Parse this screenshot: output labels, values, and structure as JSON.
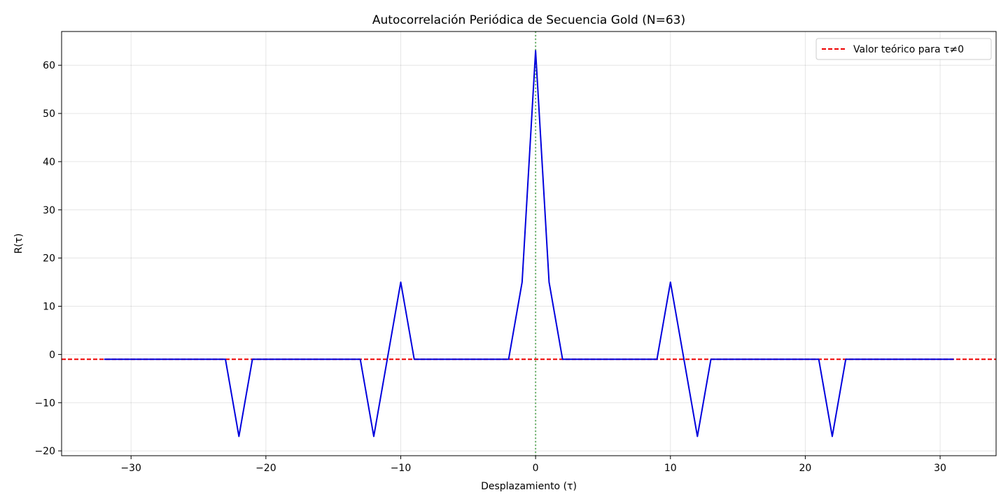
{
  "chart_data": {
    "type": "line",
    "title": "Autocorrelación Periódica de Secuencia Gold (N=63)",
    "xlabel": "Desplazamiento (τ)",
    "ylabel": "R(τ)",
    "xlim": [
      -35.15,
      34.15
    ],
    "ylim": [
      -21,
      67
    ],
    "xticks": [
      -30,
      -20,
      -10,
      0,
      10,
      20,
      30
    ],
    "xtick_labels": [
      "−30",
      "−20",
      "−10",
      "0",
      "10",
      "20",
      "30"
    ],
    "yticks": [
      -20,
      -10,
      0,
      10,
      20,
      30,
      40,
      50,
      60
    ],
    "ytick_labels": [
      "−20",
      "−10",
      "0",
      "10",
      "20",
      "30",
      "40",
      "50",
      "60"
    ],
    "grid": true,
    "legend_position": "top-right",
    "x": [
      -32,
      -31,
      -30,
      -29,
      -28,
      -27,
      -26,
      -25,
      -24,
      -23,
      -22,
      -21,
      -20,
      -19,
      -18,
      -17,
      -16,
      -15,
      -14,
      -13,
      -12,
      -11,
      -10,
      -9,
      -8,
      -7,
      -6,
      -5,
      -4,
      -3,
      -2,
      -1,
      0,
      1,
      2,
      3,
      4,
      5,
      6,
      7,
      8,
      9,
      10,
      11,
      12,
      13,
      14,
      15,
      16,
      17,
      18,
      19,
      20,
      21,
      22,
      23,
      24,
      25,
      26,
      27,
      28,
      29,
      30,
      31
    ],
    "series": [
      {
        "color": "#0000dd",
        "style": "solid",
        "values": [
          -1,
          -1,
          -1,
          -1,
          -1,
          -1,
          -1,
          -1,
          -1,
          -1,
          -17,
          -1,
          -1,
          -1,
          -1,
          -1,
          -1,
          -1,
          -1,
          -1,
          -17,
          -1,
          15,
          -1,
          -1,
          -1,
          -1,
          -1,
          -1,
          -1,
          -1,
          15,
          63,
          15,
          -1,
          -1,
          -1,
          -1,
          -1,
          -1,
          -1,
          -1,
          15,
          -1,
          -17,
          -1,
          -1,
          -1,
          -1,
          -1,
          -1,
          -1,
          -1,
          -1,
          -17,
          -1,
          -1,
          -1,
          -1,
          -1,
          -1,
          -1,
          -1,
          -1
        ]
      }
    ],
    "reference_lines": [
      {
        "name": "Valor teórico para τ≠0",
        "orientation": "horizontal",
        "value": -1,
        "color": "#ee0000",
        "style": "dashed"
      },
      {
        "orientation": "vertical",
        "value": 0,
        "color": "#6db36d",
        "style": "dotted"
      }
    ]
  }
}
